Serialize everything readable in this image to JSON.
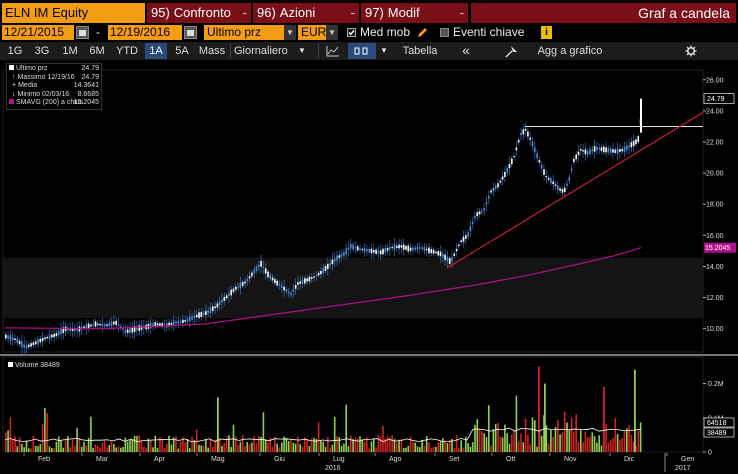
{
  "toolbar_top": {
    "ticker": "ELN IM Equity",
    "menus": [
      {
        "num": "95)",
        "label": "Confronto",
        "dash": "-"
      },
      {
        "num": "96)",
        "label": "Azioni",
        "dash": "-"
      },
      {
        "num": "97)",
        "label": "Modif",
        "dash": "-"
      }
    ],
    "title": "Graf a candela"
  },
  "toolbar_dates": {
    "start_date": "12/21/2015",
    "separator": "-",
    "end_date": "12/19/2016",
    "price_field": "Ultimo prz",
    "currency": "EUR",
    "med_mob_label": "Med mob",
    "eventi_label": "Eventi chiave",
    "info_label": "i"
  },
  "toolbar_periods": {
    "periods": [
      "1G",
      "3G",
      "1M",
      "6M",
      "YTD",
      "1A",
      "5A",
      "Mass"
    ],
    "active_period": "1A",
    "frequency": "Giornaliero",
    "tabella": "Tabella",
    "collapse": "«",
    "add_label": "Agg a grafico"
  },
  "legend": {
    "rows": [
      {
        "label": "Ultimo prz",
        "value": "24.79"
      },
      {
        "label": "Massimo 12/19/16",
        "value": "24.79"
      },
      {
        "label": "Media",
        "value": "14.3641"
      },
      {
        "label": "Minimo 02/03/16",
        "value": "8.6685"
      },
      {
        "label": "SMAVG (200) a chius",
        "value": "15.2045"
      }
    ],
    "volume_label": "Volume 38489"
  },
  "colors": {
    "orange": "#f49c12",
    "menu_red": "#7a0f18",
    "candle": "#4a8cd8",
    "sma": "#b0108a",
    "trend": "#c81e32",
    "vol_up": "#8fd14f",
    "vol_down": "#d42020"
  },
  "chart_data": [
    {
      "type": "candlestick",
      "series": [
        {
          "name": "Ultimo prz",
          "last": 24.79
        },
        {
          "name": "SMAVG (200) a chius",
          "last": 15.2045
        }
      ],
      "x_labels": [
        "Feb",
        "Mar",
        "Apr",
        "Mag",
        "Giu",
        "Lug",
        "Ago",
        "Set",
        "Ott",
        "Nov",
        "Dic",
        "Gen"
      ],
      "year_labels": [
        "2016",
        "2017"
      ],
      "y_ticks": [
        "26.00",
        "24.00",
        "22.00",
        "20.00",
        "18.00",
        "16.00",
        "14.00",
        "12.00",
        "10.00"
      ],
      "ylim": [
        8.5,
        26.5
      ],
      "price_labels": [
        "24.79",
        "15.2045"
      ],
      "price_path": [
        [
          0,
          9.5
        ],
        [
          10,
          9.3
        ],
        [
          20,
          8.8
        ],
        [
          30,
          9.1
        ],
        [
          40,
          9.4
        ],
        [
          50,
          9.6
        ],
        [
          60,
          10.0
        ],
        [
          70,
          9.9
        ],
        [
          80,
          10.1
        ],
        [
          90,
          10.3
        ],
        [
          100,
          10.2
        ],
        [
          110,
          10.4
        ],
        [
          120,
          9.8
        ],
        [
          130,
          10.0
        ],
        [
          140,
          10.1
        ],
        [
          150,
          10.3
        ],
        [
          160,
          10.2
        ],
        [
          170,
          10.4
        ],
        [
          180,
          10.5
        ],
        [
          190,
          10.8
        ],
        [
          200,
          11.0
        ],
        [
          210,
          11.4
        ],
        [
          220,
          12.0
        ],
        [
          230,
          12.6
        ],
        [
          240,
          13.0
        ],
        [
          250,
          13.8
        ],
        [
          255,
          14.2
        ],
        [
          262,
          13.5
        ],
        [
          270,
          13.0
        ],
        [
          278,
          12.6
        ],
        [
          285,
          12.2
        ],
        [
          292,
          12.9
        ],
        [
          300,
          13.1
        ],
        [
          308,
          13.3
        ],
        [
          315,
          13.6
        ],
        [
          322,
          14.0
        ],
        [
          330,
          14.5
        ],
        [
          338,
          14.8
        ],
        [
          345,
          15.3
        ],
        [
          355,
          15.1
        ],
        [
          365,
          15.0
        ],
        [
          375,
          14.9
        ],
        [
          385,
          15.2
        ],
        [
          395,
          15.3
        ],
        [
          405,
          15.1
        ],
        [
          415,
          15.2
        ],
        [
          425,
          15.0
        ],
        [
          435,
          14.8
        ],
        [
          445,
          14.3
        ],
        [
          455,
          15.6
        ],
        [
          462,
          16.0
        ],
        [
          470,
          17.3
        ],
        [
          478,
          17.6
        ],
        [
          485,
          18.8
        ],
        [
          492,
          19.2
        ],
        [
          500,
          20.0
        ],
        [
          508,
          21.0
        ],
        [
          515,
          22.5
        ],
        [
          520,
          22.8
        ],
        [
          526,
          22.0
        ],
        [
          532,
          21.0
        ],
        [
          540,
          19.8
        ],
        [
          547,
          19.4
        ],
        [
          553,
          19.0
        ],
        [
          558,
          18.8
        ],
        [
          563,
          19.5
        ],
        [
          568,
          20.8
        ],
        [
          575,
          21.5
        ],
        [
          582,
          21.3
        ],
        [
          590,
          21.6
        ],
        [
          600,
          21.5
        ],
        [
          610,
          21.4
        ],
        [
          618,
          21.5
        ],
        [
          625,
          21.8
        ],
        [
          630,
          22.0
        ],
        [
          634,
          22.3
        ],
        [
          636,
          24.79
        ]
      ],
      "sma_path": [
        [
          0,
          10.05
        ],
        [
          100,
          10.0
        ],
        [
          200,
          10.3
        ],
        [
          300,
          11.2
        ],
        [
          400,
          12.1
        ],
        [
          470,
          12.8
        ],
        [
          520,
          13.4
        ],
        [
          570,
          14.1
        ],
        [
          610,
          14.7
        ],
        [
          636,
          15.2045
        ]
      ],
      "resistance_line": {
        "x0": 520,
        "x1": 703,
        "y": 23.0
      },
      "trend_line": {
        "x0": 447,
        "y0": 13.9,
        "x1": 703,
        "y1": 23.9
      }
    },
    {
      "type": "bar",
      "series": [
        {
          "name": "Volume",
          "last": 38489
        }
      ],
      "y_ticks": [
        "0.2M",
        "0.1M",
        "0"
      ],
      "value_labels": [
        "64518",
        "38489"
      ]
    }
  ]
}
